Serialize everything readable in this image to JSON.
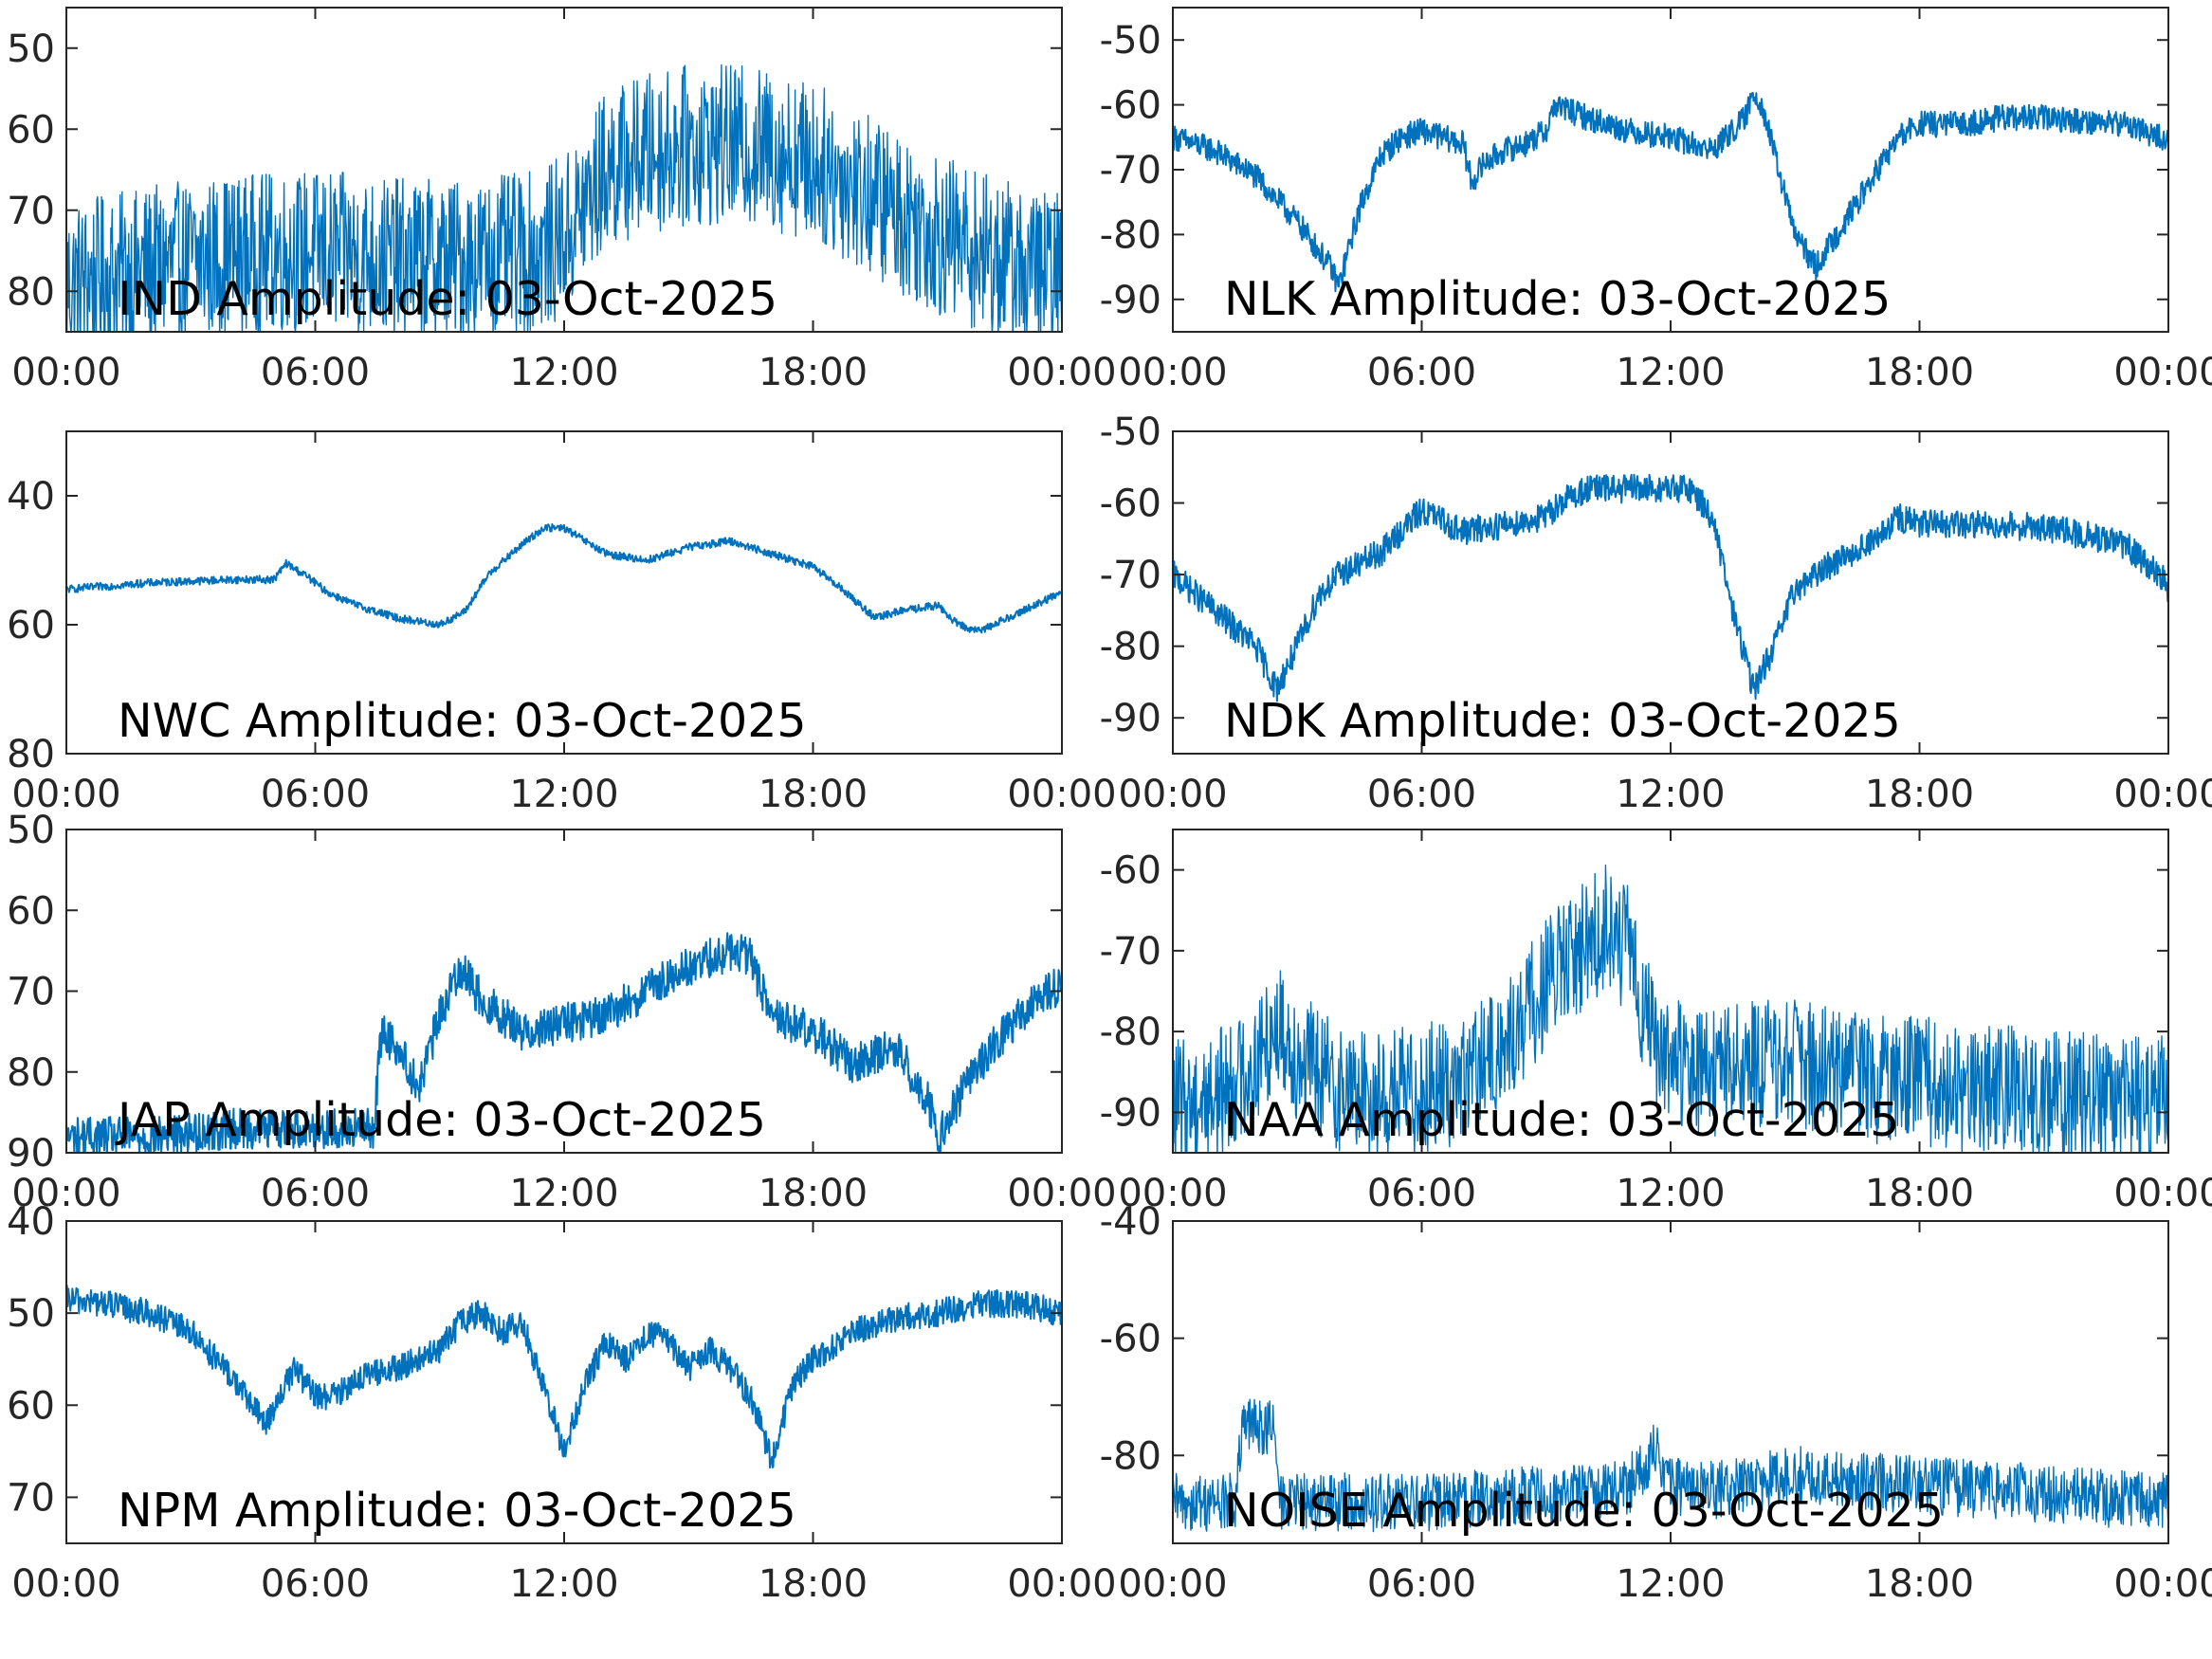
{
  "figure": {
    "line_color": "#0072BD",
    "axis_color": "#262626"
  },
  "chart_data": [
    {
      "type": "line",
      "title": "IND Amplitude: 03-Oct-2025",
      "xlabel": "",
      "ylabel": "",
      "xlim": [
        0,
        24
      ],
      "x_tick_labels": [
        "00:00",
        "06:00",
        "12:00",
        "18:00",
        "00:00"
      ],
      "ylim": [
        -85,
        -45
      ],
      "y_ticks": [
        -50,
        -60,
        -70,
        -80
      ],
      "y_tick_labels": [
        "50",
        "60",
        "70",
        "80"
      ],
      "noise": 10,
      "series": [
        {
          "name": "IND",
          "x": [
            0,
            2,
            4,
            6,
            8,
            10,
            11.5,
            12.2,
            13,
            14,
            15,
            16,
            17,
            18,
            19,
            20,
            21,
            22,
            23,
            24
          ],
          "y": [
            -79,
            -77,
            -75.5,
            -75,
            -76,
            -76,
            -75,
            -72,
            -65,
            -63,
            -62,
            -62,
            -62.5,
            -64,
            -67,
            -70,
            -73,
            -75,
            -77,
            -78
          ]
        }
      ]
    },
    {
      "type": "line",
      "title": "NLK Amplitude: 03-Oct-2025",
      "xlabel": "",
      "ylabel": "",
      "xlim": [
        0,
        24
      ],
      "x_tick_labels": [
        "00:00",
        "06:00",
        "12:00",
        "18:00",
        "00:00"
      ],
      "ylim": [
        -95,
        -45
      ],
      "y_ticks": [
        -50,
        -60,
        -70,
        -80,
        -90
      ],
      "y_tick_labels": [
        "-50",
        "-60",
        "-70",
        "-80",
        "-90"
      ],
      "noise": 2,
      "series": [
        {
          "name": "NLK",
          "x": [
            0,
            1,
            2,
            3,
            3.8,
            4,
            4.5,
            5,
            5.5,
            6,
            7,
            7.2,
            7.5,
            8,
            8.5,
            9,
            9.2,
            10,
            11,
            12,
            13,
            13.5,
            13.8,
            14,
            14.2,
            14.6,
            15,
            15.5,
            16,
            17,
            17.5,
            18,
            19,
            20,
            21,
            22,
            23,
            24
          ],
          "y": [
            -65,
            -67,
            -71,
            -78,
            -85,
            -88,
            -76,
            -68,
            -65,
            -64,
            -66,
            -72,
            -69,
            -67,
            -66,
            -64,
            -60,
            -62,
            -64,
            -65,
            -67,
            -64,
            -62,
            -58,
            -60,
            -70,
            -80,
            -85,
            -80,
            -70,
            -65,
            -63,
            -63,
            -62,
            -62,
            -62.5,
            -63,
            -65.5
          ]
        }
      ]
    },
    {
      "type": "line",
      "title": "NWC Amplitude: 03-Oct-2025",
      "xlabel": "",
      "ylabel": "",
      "xlim": [
        0,
        24
      ],
      "x_tick_labels": [
        "00:00",
        "06:00",
        "12:00",
        "18:00",
        "00:00"
      ],
      "ylim": [
        -80,
        -30
      ],
      "y_ticks": [
        -40,
        -60,
        -80
      ],
      "y_tick_labels": [
        "40",
        "60",
        "80"
      ],
      "noise": 0.6,
      "series": [
        {
          "name": "NWC",
          "x": [
            0,
            2,
            4,
            5,
            5.3,
            5.8,
            6.3,
            7,
            8,
            9,
            9.6,
            10.2,
            11,
            11.5,
            12,
            13,
            14,
            15,
            16,
            17,
            18,
            18.8,
            19.5,
            20,
            21,
            21.5,
            22,
            23,
            24
          ],
          "y": [
            -54.5,
            -53.5,
            -53,
            -53,
            -50.5,
            -52.5,
            -55,
            -57,
            -59,
            -60,
            -58,
            -52,
            -47.5,
            -45,
            -45,
            -49,
            -50,
            -48,
            -47,
            -49,
            -51,
            -55,
            -59,
            -58,
            -57,
            -60,
            -61,
            -58,
            -55
          ]
        }
      ]
    },
    {
      "type": "line",
      "title": "NDK Amplitude: 03-Oct-2025",
      "xlabel": "",
      "ylabel": "",
      "xlim": [
        0,
        24
      ],
      "x_tick_labels": [
        "00:00",
        "06:00",
        "12:00",
        "18:00",
        "00:00"
      ],
      "ylim": [
        -95,
        -50
      ],
      "y_ticks": [
        -50,
        -60,
        -70,
        -80,
        -90
      ],
      "y_tick_labels": [
        "-50",
        "-60",
        "-70",
        "-80",
        "-90"
      ],
      "noise": 2,
      "series": [
        {
          "name": "NDK",
          "x": [
            0,
            1,
            2,
            2.5,
            3,
            3.5,
            4,
            5,
            6,
            7,
            8,
            9,
            9.3,
            10,
            11,
            12,
            12.5,
            13,
            13.5,
            14,
            14.5,
            15,
            16,
            17,
            17.5,
            18,
            19,
            20,
            21,
            22,
            23,
            23.8,
            24
          ],
          "y": [
            -70,
            -75,
            -80,
            -86,
            -80,
            -73,
            -70,
            -67,
            -61,
            -64,
            -63,
            -62,
            -60,
            -58,
            -58,
            -58,
            -58,
            -62,
            -75,
            -86,
            -80,
            -72,
            -68,
            -65,
            -62,
            -63,
            -63,
            -63,
            -63.5,
            -64.5,
            -66,
            -70,
            -72
          ]
        }
      ]
    },
    {
      "type": "line",
      "title": "JAP Amplitude: 03-Oct-2025",
      "xlabel": "",
      "ylabel": "",
      "xlim": [
        0,
        24
      ],
      "x_tick_labels": [
        "00:00",
        "06:00",
        "12:00",
        "18:00",
        "00:00"
      ],
      "ylim": [
        -90,
        -50
      ],
      "y_ticks": [
        -50,
        -60,
        -70,
        -80,
        -90
      ],
      "y_tick_labels": [
        "50",
        "60",
        "70",
        "80",
        "90"
      ],
      "noise": 2.5,
      "series": [
        {
          "name": "JAP",
          "x": [
            0,
            2,
            4,
            6,
            7.4,
            7.6,
            8,
            8.5,
            9,
            9.5,
            10,
            11,
            12,
            13,
            14,
            15,
            16,
            16.5,
            17,
            18,
            19,
            20,
            20.8,
            21,
            22,
            23,
            24
          ],
          "y": [
            -88,
            -88,
            -87,
            -87,
            -87,
            -75,
            -77,
            -82,
            -73,
            -67,
            -71,
            -75,
            -74,
            -73,
            -70,
            -67,
            -65,
            -66,
            -73,
            -75,
            -79,
            -77,
            -84,
            -88,
            -79,
            -73,
            -69
          ]
        }
      ]
    },
    {
      "type": "line",
      "title": "NAA Amplitude: 03-Oct-2025",
      "xlabel": "",
      "ylabel": "",
      "xlim": [
        0,
        24
      ],
      "x_tick_labels": [
        "00:00",
        "06:00",
        "12:00",
        "18:00",
        "00:00"
      ],
      "ylim": [
        -95,
        -55
      ],
      "y_ticks": [
        -60,
        -70,
        -80,
        -90
      ],
      "y_tick_labels": [
        "-60",
        "-70",
        "-80",
        "-90"
      ],
      "noise": 8,
      "series": [
        {
          "name": "NAA",
          "x": [
            0,
            1,
            2,
            2.5,
            3,
            4,
            5,
            6,
            7,
            8,
            9,
            10,
            10.5,
            11,
            11.5,
            12,
            13,
            14,
            15,
            16,
            17,
            18,
            19,
            20,
            21,
            22,
            23,
            24
          ],
          "y": [
            -89,
            -88,
            -84,
            -79,
            -83,
            -87,
            -88,
            -87,
            -86,
            -82,
            -74,
            -69,
            -67,
            -70,
            -80,
            -84,
            -85,
            -84,
            -84,
            -85,
            -86,
            -86,
            -87,
            -87,
            -88,
            -88,
            -88,
            -88
          ]
        }
      ]
    },
    {
      "type": "line",
      "title": "NPM Amplitude: 03-Oct-2025",
      "xlabel": "",
      "ylabel": "",
      "xlim": [
        0,
        24
      ],
      "x_tick_labels": [
        "00:00",
        "06:00",
        "12:00",
        "18:00",
        "00:00"
      ],
      "ylim": [
        -75,
        -40
      ],
      "y_ticks": [
        -40,
        -50,
        -60,
        -70
      ],
      "y_tick_labels": [
        "40",
        "50",
        "60",
        "70"
      ],
      "noise": 1.5,
      "series": [
        {
          "name": "NPM",
          "x": [
            0,
            1,
            2,
            3,
            4,
            4.8,
            5.5,
            6,
            6.5,
            7,
            8,
            9,
            9.5,
            10,
            10.5,
            11,
            11.5,
            12,
            12.5,
            13,
            13.5,
            14,
            14.5,
            15,
            15.5,
            16,
            16.5,
            17,
            17.5,
            18,
            19,
            20,
            21,
            22,
            23,
            24
          ],
          "y": [
            -48.5,
            -49,
            -50,
            -52,
            -57,
            -62,
            -56,
            -59,
            -59,
            -57,
            -56,
            -54,
            -51,
            -50,
            -52,
            -51,
            -58,
            -65,
            -58,
            -53,
            -55,
            -52,
            -53,
            -56,
            -54,
            -56,
            -59,
            -66,
            -58,
            -55,
            -52,
            -50.5,
            -50,
            -49,
            -49,
            -50
          ]
        }
      ]
    },
    {
      "type": "line",
      "title": "NOISE Amplitude: 03-Oct-2025",
      "xlabel": "",
      "ylabel": "",
      "xlim": [
        0,
        24
      ],
      "x_tick_labels": [
        "00:00",
        "06:00",
        "12:00",
        "18:00",
        "00:00"
      ],
      "ylim": [
        -95,
        -40
      ],
      "y_ticks": [
        -40,
        -60,
        -80
      ],
      "y_tick_labels": [
        "-40",
        "-60",
        "-80"
      ],
      "noise": 5,
      "series": [
        {
          "name": "NOISE",
          "x": [
            0,
            1.5,
            1.7,
            2.4,
            2.6,
            4,
            6,
            8,
            10,
            11,
            11.6,
            12,
            13,
            14,
            15,
            16,
            18,
            20,
            22,
            24
          ],
          "y": [
            -88,
            -88,
            -75,
            -75,
            -88,
            -88,
            -88,
            -87,
            -86,
            -85,
            -79,
            -85,
            -86,
            -85,
            -83,
            -84,
            -85,
            -86,
            -87,
            -88
          ]
        }
      ]
    }
  ]
}
